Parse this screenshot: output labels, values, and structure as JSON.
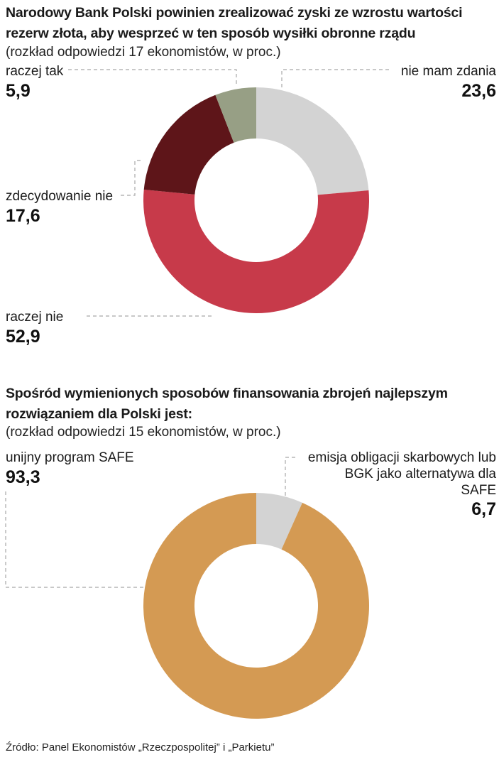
{
  "chart_data": [
    {
      "type": "pie",
      "title": "Narodowy Bank Polski powinien zrealizować zyski ze wzrostu wartości rezerw złota, aby wesprzeć w ten sposób wysiłki obronne rządu",
      "subtitle": "(rozkład odpowiedzi 17 ekonomistów, w proc.)",
      "categories": [
        "nie mam zdania",
        "raczej nie",
        "zdecydowanie nie",
        "raczej tak"
      ],
      "values": [
        23.6,
        52.9,
        17.6,
        5.9
      ],
      "value_labels": [
        "23,6",
        "52,9",
        "17,6",
        "5,9"
      ],
      "colors": [
        "#d3d3d3",
        "#c73a4a",
        "#5e1519",
        "#979f85"
      ]
    },
    {
      "type": "pie",
      "title": "Spośród wymienionych sposobów finansowania zbrojeń najlepszym rozwiązaniem dla Polski jest:",
      "subtitle": "(rozkład odpowiedzi 15 ekonomistów, w proc.)",
      "categories": [
        "emisja obligacji skarbowych lub BGK jako alternatywa dla SAFE",
        "unijny program SAFE"
      ],
      "label_lines": [
        [
          "emisja obligacji skarbowych lub",
          "BGK jako alternatywa dla",
          "SAFE"
        ],
        [
          "unijny program SAFE"
        ]
      ],
      "values": [
        6.7,
        93.3
      ],
      "value_labels": [
        "6,7",
        "93,3"
      ],
      "colors": [
        "#d3d3d3",
        "#d49a53"
      ]
    }
  ],
  "source": "Źródło: Panel Ekonomistów „Rzeczpospolitej” i „Parkietu”"
}
